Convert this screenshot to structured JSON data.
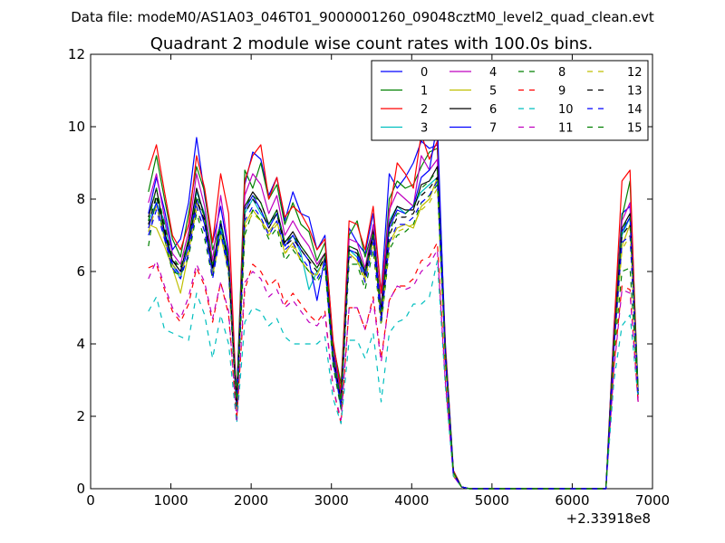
{
  "chart_data": {
    "type": "line",
    "suptitle": "Data file: modeM0/AS1A03_046T01_9000001260_09048cztM0_level2_quad_clean.evt",
    "title": "Quadrant 2 module wise count rates with 100.0s bins.",
    "xlabel": "",
    "ylabel": "",
    "x_offset_label": "+2.33918e8",
    "xlim": [
      0,
      7000
    ],
    "ylim": [
      0,
      12
    ],
    "xticks": [
      0,
      1000,
      2000,
      3000,
      4000,
      5000,
      6000,
      7000
    ],
    "yticks": [
      0,
      2,
      4,
      6,
      8,
      10,
      12
    ],
    "grid": false,
    "legend_position": "top-right",
    "x": [
      720,
      820,
      920,
      1020,
      1120,
      1220,
      1320,
      1420,
      1520,
      1620,
      1720,
      1820,
      1920,
      2020,
      2120,
      2220,
      2320,
      2420,
      2520,
      2620,
      2720,
      2820,
      2920,
      3020,
      3120,
      3220,
      3320,
      3420,
      3520,
      3620,
      3720,
      3820,
      3920,
      4020,
      4120,
      4220,
      4320,
      4420,
      4520,
      4620,
      4720,
      6420,
      6520,
      6620,
      6720,
      6820
    ],
    "series": [
      {
        "name": "0",
        "color": "#0000ff",
        "style": "solid",
        "values": [
          7.6,
          8.6,
          7.7,
          6.6,
          6.9,
          7.9,
          9.7,
          8.1,
          6.8,
          7.8,
          6.5,
          2.6,
          8.4,
          9.3,
          9.1,
          8.1,
          8.6,
          7.4,
          8.2,
          7.6,
          7.5,
          6.6,
          7.0,
          4.0,
          2.6,
          7.2,
          6.8,
          6.5,
          7.6,
          5.4,
          8.7,
          8.3,
          8.6,
          9.0,
          9.6,
          9.4,
          9.5,
          4.0,
          0.5,
          0.05,
          0.0,
          0.0,
          4.5,
          7.6,
          7.8,
          2.8
        ]
      },
      {
        "name": "1",
        "color": "#008000",
        "style": "solid",
        "values": [
          8.2,
          9.2,
          8.0,
          6.9,
          6.4,
          7.6,
          8.9,
          8.2,
          6.6,
          7.3,
          6.4,
          2.5,
          8.8,
          8.3,
          9.0,
          8.0,
          8.4,
          7.3,
          7.9,
          7.3,
          7.1,
          6.3,
          6.8,
          4.0,
          2.9,
          7.0,
          7.4,
          6.4,
          7.2,
          5.0,
          8.0,
          8.5,
          8.3,
          8.4,
          8.9,
          9.3,
          9.4,
          3.8,
          0.5,
          0.05,
          0.0,
          0.0,
          4.3,
          7.5,
          8.5,
          2.7
        ]
      },
      {
        "name": "2",
        "color": "#ff0000",
        "style": "solid",
        "values": [
          8.8,
          9.5,
          8.2,
          7.0,
          6.6,
          7.3,
          9.2,
          8.3,
          6.8,
          8.7,
          7.6,
          2.3,
          8.5,
          9.2,
          9.5,
          8.0,
          8.6,
          7.5,
          7.8,
          7.6,
          7.2,
          6.6,
          6.9,
          4.1,
          2.7,
          7.4,
          7.3,
          6.6,
          7.8,
          5.4,
          7.6,
          9.0,
          8.7,
          8.3,
          9.8,
          9.1,
          9.6,
          3.9,
          0.5,
          0.05,
          0.0,
          0.0,
          4.4,
          8.5,
          8.8,
          2.4
        ]
      },
      {
        "name": "3",
        "color": "#00bfbf",
        "style": "solid",
        "values": [
          7.4,
          7.9,
          7.4,
          6.2,
          5.8,
          6.8,
          8.2,
          7.6,
          6.0,
          7.2,
          6.1,
          2.2,
          7.6,
          8.0,
          7.6,
          7.3,
          7.6,
          6.7,
          7.0,
          6.5,
          5.5,
          6.0,
          6.3,
          3.6,
          2.2,
          6.6,
          6.4,
          5.9,
          7.0,
          4.8,
          7.4,
          7.8,
          7.6,
          7.8,
          8.2,
          8.4,
          8.6,
          3.7,
          0.45,
          0.05,
          0.0,
          0.0,
          4.0,
          7.0,
          7.5,
          2.6
        ]
      },
      {
        "name": "4",
        "color": "#bf00bf",
        "style": "solid",
        "values": [
          7.9,
          8.7,
          7.5,
          6.5,
          6.2,
          7.1,
          8.7,
          7.8,
          6.3,
          8.1,
          6.6,
          2.3,
          8.1,
          8.7,
          8.4,
          7.6,
          8.1,
          7.0,
          7.4,
          7.0,
          6.7,
          6.2,
          6.5,
          3.8,
          2.5,
          6.9,
          6.8,
          6.1,
          7.3,
          5.0,
          7.7,
          8.2,
          8.0,
          7.8,
          9.2,
          8.8,
          9.1,
          3.7,
          0.45,
          0.05,
          0.0,
          0.0,
          4.1,
          7.4,
          7.9,
          2.5
        ]
      },
      {
        "name": "5",
        "color": "#bfbf00",
        "style": "solid",
        "values": [
          7.3,
          7.2,
          6.7,
          6.1,
          5.4,
          6.5,
          7.9,
          7.4,
          5.9,
          7.0,
          6.0,
          2.2,
          7.3,
          7.7,
          7.4,
          7.1,
          7.4,
          6.5,
          6.8,
          6.3,
          6.0,
          5.9,
          6.4,
          3.6,
          2.3,
          6.5,
          6.3,
          5.8,
          6.9,
          4.7,
          6.8,
          7.2,
          7.3,
          7.2,
          7.8,
          8.0,
          8.6,
          3.6,
          0.45,
          0.05,
          0.0,
          0.0,
          4.0,
          6.7,
          7.3,
          2.7
        ]
      },
      {
        "name": "6",
        "color": "#000000",
        "style": "solid",
        "values": [
          7.5,
          8.3,
          7.1,
          6.3,
          6.0,
          6.9,
          8.3,
          7.5,
          6.1,
          7.4,
          6.2,
          2.3,
          7.8,
          8.2,
          7.9,
          7.3,
          7.7,
          6.8,
          7.1,
          6.7,
          6.4,
          6.1,
          6.5,
          3.7,
          2.4,
          6.7,
          6.6,
          6.0,
          7.1,
          4.9,
          7.3,
          7.8,
          7.7,
          7.7,
          8.4,
          8.5,
          8.9,
          3.7,
          0.45,
          0.05,
          0.0,
          0.0,
          4.1,
          7.2,
          7.6,
          2.6
        ]
      },
      {
        "name": "7",
        "color": "#0000ff",
        "style": "solid",
        "values": [
          7.2,
          7.9,
          7.0,
          6.2,
          5.9,
          6.7,
          8.0,
          7.3,
          5.9,
          7.4,
          6.1,
          2.3,
          7.7,
          8.1,
          7.7,
          7.2,
          7.6,
          6.7,
          7.0,
          6.6,
          6.3,
          5.2,
          6.4,
          3.6,
          2.3,
          6.6,
          6.5,
          5.9,
          7.0,
          4.8,
          7.2,
          7.7,
          7.6,
          7.8,
          8.6,
          8.8,
          10.1,
          3.7,
          0.45,
          0.05,
          0.0,
          0.0,
          4.0,
          7.1,
          7.5,
          2.6
        ]
      },
      {
        "name": "8",
        "color": "#008000",
        "style": "dashed",
        "values": [
          6.7,
          8.1,
          6.9,
          6.0,
          5.9,
          6.4,
          7.6,
          6.9,
          5.8,
          7.1,
          5.9,
          2.0,
          7.0,
          7.7,
          7.4,
          6.9,
          7.2,
          6.3,
          6.6,
          6.3,
          6.0,
          5.7,
          6.1,
          3.4,
          2.2,
          6.2,
          6.2,
          5.5,
          6.6,
          4.5,
          6.6,
          7.0,
          7.1,
          7.3,
          7.9,
          8.1,
          8.4,
          3.5,
          0.4,
          0.05,
          0.0,
          0.0,
          3.7,
          6.0,
          6.1,
          2.6
        ]
      },
      {
        "name": "9",
        "color": "#ff0000",
        "style": "dashed",
        "values": [
          6.1,
          6.2,
          5.5,
          4.9,
          4.6,
          5.1,
          6.1,
          5.6,
          4.6,
          5.7,
          4.8,
          1.9,
          5.5,
          6.2,
          6.0,
          5.6,
          5.8,
          5.1,
          5.4,
          5.1,
          4.8,
          4.6,
          4.9,
          2.8,
          1.8,
          5.0,
          5.0,
          4.4,
          5.3,
          3.6,
          5.2,
          5.6,
          5.6,
          5.8,
          6.3,
          6.4,
          6.8,
          3.0,
          0.35,
          0.05,
          0.0,
          0.0,
          3.4,
          5.6,
          5.5,
          2.4
        ]
      },
      {
        "name": "10",
        "color": "#00bfbf",
        "style": "dashed",
        "values": [
          4.9,
          5.3,
          4.4,
          4.3,
          4.2,
          4.1,
          5.4,
          4.8,
          3.6,
          4.8,
          4.0,
          1.8,
          4.6,
          5.0,
          4.9,
          4.5,
          4.7,
          4.2,
          4.0,
          4.0,
          4.0,
          4.0,
          4.2,
          2.5,
          1.8,
          4.1,
          4.1,
          3.6,
          4.3,
          2.4,
          4.3,
          4.6,
          4.7,
          5.1,
          5.1,
          5.3,
          6.3,
          2.8,
          0.35,
          0.05,
          0.0,
          0.0,
          3.0,
          4.5,
          4.8,
          2.5
        ]
      },
      {
        "name": "11",
        "color": "#bf00bf",
        "style": "dashed",
        "values": [
          5.8,
          6.3,
          5.6,
          5.0,
          4.7,
          5.3,
          6.2,
          5.7,
          4.7,
          5.7,
          4.9,
          1.9,
          5.7,
          6.0,
          5.8,
          5.3,
          5.5,
          5.0,
          5.2,
          4.9,
          4.6,
          4.5,
          4.8,
          2.8,
          1.9,
          5.0,
          5.0,
          4.4,
          5.2,
          3.5,
          5.2,
          5.6,
          5.5,
          5.6,
          6.0,
          6.2,
          6.6,
          2.9,
          0.35,
          0.05,
          0.0,
          0.0,
          3.3,
          5.5,
          5.4,
          2.4
        ]
      },
      {
        "name": "12",
        "color": "#bfbf00",
        "style": "dashed",
        "values": [
          7.1,
          7.8,
          6.9,
          6.2,
          5.9,
          6.6,
          7.7,
          7.1,
          5.9,
          7.0,
          6.0,
          2.2,
          7.2,
          7.6,
          7.4,
          7.0,
          7.3,
          6.5,
          6.7,
          6.3,
          6.0,
          5.8,
          6.2,
          3.5,
          2.3,
          6.4,
          6.3,
          5.7,
          6.8,
          4.6,
          6.7,
          7.1,
          7.2,
          7.3,
          7.7,
          7.9,
          8.3,
          3.6,
          0.4,
          0.05,
          0.0,
          0.0,
          3.9,
          6.6,
          7.0,
          2.6
        ]
      },
      {
        "name": "13",
        "color": "#000000",
        "style": "dashed",
        "values": [
          7.3,
          8.1,
          7.2,
          6.3,
          6.1,
          6.8,
          8.0,
          7.4,
          6.1,
          7.3,
          6.2,
          2.3,
          7.6,
          8.0,
          7.7,
          7.2,
          7.6,
          6.7,
          6.9,
          6.6,
          6.3,
          6.0,
          6.4,
          3.6,
          2.4,
          6.6,
          6.5,
          5.9,
          7.0,
          4.8,
          7.0,
          7.5,
          7.5,
          7.6,
          8.1,
          8.3,
          8.6,
          3.7,
          0.45,
          0.05,
          0.0,
          0.0,
          4.0,
          7.0,
          7.3,
          2.7
        ]
      },
      {
        "name": "14",
        "color": "#0000ff",
        "style": "dashed",
        "values": [
          7.0,
          7.7,
          6.9,
          6.1,
          5.8,
          6.5,
          7.8,
          7.1,
          5.8,
          7.1,
          6.0,
          2.2,
          7.4,
          7.8,
          7.5,
          7.0,
          7.4,
          6.6,
          6.8,
          6.4,
          6.1,
          5.8,
          6.2,
          3.5,
          2.3,
          6.4,
          6.4,
          5.7,
          6.8,
          4.6,
          6.8,
          7.3,
          7.3,
          7.5,
          7.9,
          8.1,
          8.5,
          3.6,
          0.4,
          0.05,
          0.0,
          0.0,
          3.9,
          6.8,
          7.0,
          2.6
        ]
      },
      {
        "name": "15",
        "color": "#008000",
        "style": "dashed",
        "values": [
          7.4,
          8.3,
          7.3,
          6.4,
          6.1,
          6.9,
          8.1,
          7.5,
          6.2,
          7.4,
          6.3,
          2.3,
          7.8,
          8.1,
          7.9,
          7.3,
          7.7,
          6.8,
          7.0,
          6.7,
          6.4,
          6.1,
          6.5,
          3.7,
          2.4,
          6.7,
          6.6,
          6.0,
          7.1,
          4.9,
          7.1,
          7.6,
          7.6,
          7.8,
          8.3,
          8.5,
          8.8,
          3.7,
          0.45,
          0.05,
          0.0,
          0.0,
          4.0,
          7.2,
          7.5,
          2.7
        ]
      }
    ]
  }
}
